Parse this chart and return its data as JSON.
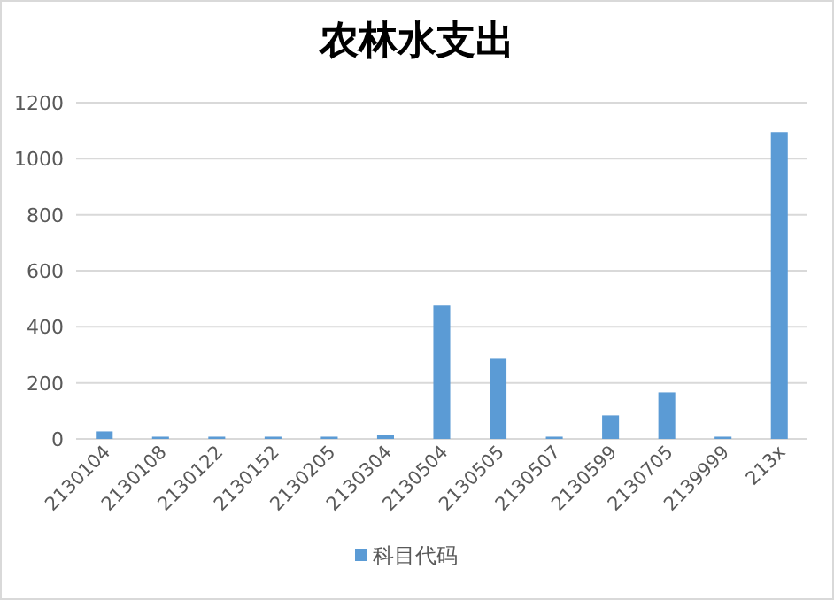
{
  "chart_data": {
    "type": "bar",
    "title": "农林水支出",
    "categories": [
      "2130104",
      "2130108",
      "2130122",
      "2130152",
      "2130205",
      "2130304",
      "2130504",
      "2130505",
      "2130507",
      "2130599",
      "2130705",
      "2139999",
      "213x"
    ],
    "series": [
      {
        "name": "科目代码",
        "color": "#5b9bd5",
        "values": [
          27,
          8,
          8,
          8,
          8,
          15,
          476,
          286,
          8,
          84,
          166,
          8,
          1095
        ]
      }
    ],
    "ylim": [
      0,
      1200
    ],
    "yticks": [
      0,
      200,
      400,
      600,
      800,
      1000,
      1200
    ],
    "grid": "y",
    "legend": "bottom"
  }
}
